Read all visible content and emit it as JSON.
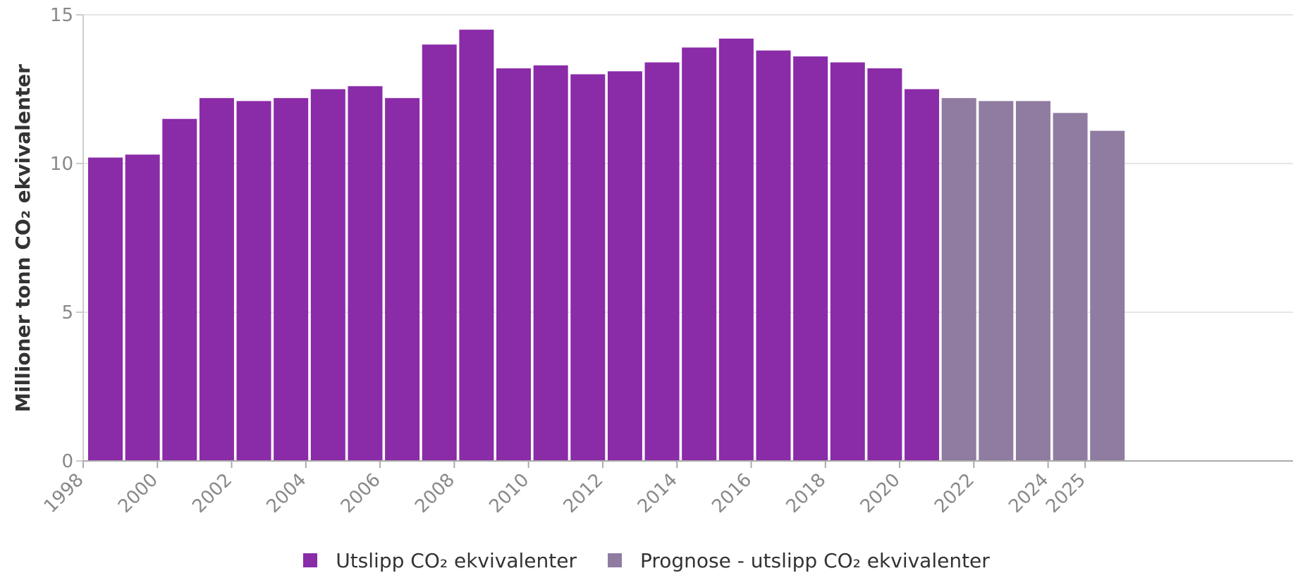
{
  "chart_data": {
    "type": "bar",
    "ylabel": "Millioner tonn CO₂ ekvivalenter",
    "ylim": [
      0,
      15
    ],
    "yticks": [
      0,
      5,
      10,
      15
    ],
    "xticks": [
      "1998",
      "2000",
      "2002",
      "2004",
      "2006",
      "2008",
      "2010",
      "2012",
      "2014",
      "2016",
      "2018",
      "2020",
      "2022",
      "2024",
      "2025"
    ],
    "grid": true,
    "legend_position": "bottom",
    "series": [
      {
        "name": "Utslipp CO₂ ekvivalenter",
        "color": "#8a2ba8",
        "x": [
          1998,
          1999,
          2000,
          2001,
          2002,
          2003,
          2004,
          2005,
          2006,
          2007,
          2008,
          2009,
          2010,
          2011,
          2012,
          2013,
          2014,
          2015,
          2016,
          2017,
          2018,
          2019,
          2020
        ],
        "values": [
          10.2,
          10.3,
          11.5,
          12.2,
          12.1,
          12.2,
          12.5,
          12.6,
          12.2,
          14.0,
          14.5,
          13.2,
          13.3,
          13.0,
          13.1,
          13.4,
          13.9,
          14.2,
          13.8,
          13.6,
          13.4,
          13.2,
          12.5
        ]
      },
      {
        "name": "Prognose - utslipp CO₂ ekvivalenter",
        "color": "#8f7ca0",
        "x": [
          2021,
          2022,
          2023,
          2024,
          2025
        ],
        "values": [
          12.2,
          12.1,
          12.1,
          11.7,
          11.1
        ]
      }
    ]
  }
}
